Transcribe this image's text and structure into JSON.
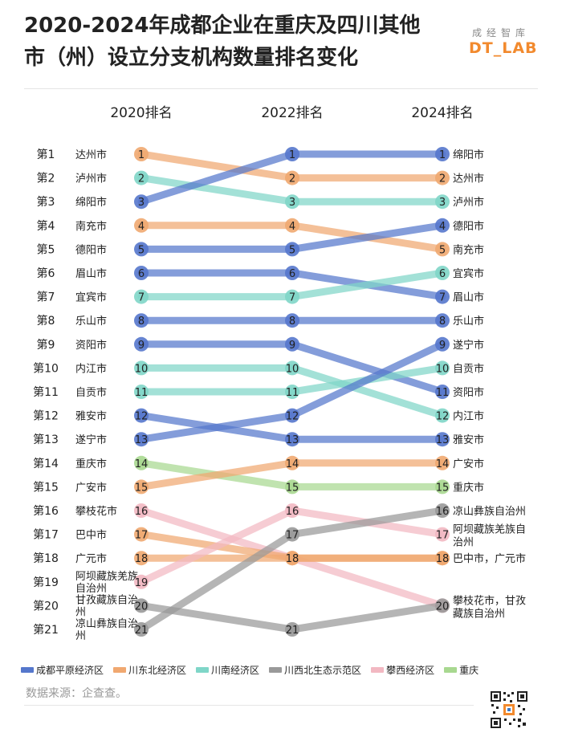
{
  "title_line1": "2020-2024年成都企业在重庆及四川其他",
  "title_line2": "市（州）设立分支机构数量排名变化",
  "brand_top": "成经智库",
  "brand_bottom": "DT_LAB",
  "source": "数据来源：企查查。",
  "colors": {
    "成都平原经济区": "#5577cc",
    "川东北经济区": "#f0a870",
    "川南经济区": "#7fd6c8",
    "川西北生态示范区": "#999999",
    "攀西经济区": "#f2b8c2",
    "重庆": "#a8d890"
  },
  "legend": [
    "成都平原经济区",
    "川东北经济区",
    "川南经济区",
    "川西北生态示范区",
    "攀西经济区",
    "重庆"
  ],
  "chart_data": {
    "type": "line",
    "title": "2020-2024年成都企业在重庆及四川其他市（州）设立分支机构数量排名变化",
    "x": [
      "2020排名",
      "2022排名",
      "2024排名"
    ],
    "rank_labels": [
      "第1",
      "第2",
      "第3",
      "第4",
      "第5",
      "第6",
      "第7",
      "第8",
      "第9",
      "第10",
      "第11",
      "第12",
      "第13",
      "第14",
      "第15",
      "第16",
      "第17",
      "第18",
      "第19",
      "第20",
      "第21"
    ],
    "labels_2020": [
      "达州市",
      "泸州市",
      "绵阳市",
      "南充市",
      "德阳市",
      "眉山市",
      "宜宾市",
      "乐山市",
      "资阳市",
      "内江市",
      "自贡市",
      "雅安市",
      "遂宁市",
      "重庆市",
      "广安市",
      "攀枝花市",
      "巴中市",
      "广元市",
      "阿坝藏族羌族自治州",
      "甘孜藏族自治州",
      "凉山彝族自治州"
    ],
    "labels_2024": [
      {
        "rank": 1,
        "text": "绵阳市"
      },
      {
        "rank": 2,
        "text": "达州市"
      },
      {
        "rank": 3,
        "text": "泸州市"
      },
      {
        "rank": 4,
        "text": "德阳市"
      },
      {
        "rank": 5,
        "text": "南充市"
      },
      {
        "rank": 6,
        "text": "宜宾市"
      },
      {
        "rank": 7,
        "text": "眉山市"
      },
      {
        "rank": 8,
        "text": "乐山市"
      },
      {
        "rank": 9,
        "text": "遂宁市"
      },
      {
        "rank": 10,
        "text": "自贡市"
      },
      {
        "rank": 11,
        "text": "资阳市"
      },
      {
        "rank": 12,
        "text": "内江市"
      },
      {
        "rank": 13,
        "text": "雅安市"
      },
      {
        "rank": 14,
        "text": "广安市"
      },
      {
        "rank": 15,
        "text": "重庆市"
      },
      {
        "rank": 16,
        "text": "凉山彝族自治州"
      },
      {
        "rank": 17,
        "text": "阿坝藏族羌族自治州"
      },
      {
        "rank": 18,
        "text": "巴中市，广元市"
      },
      {
        "rank": 20,
        "text": "攀枝花市，甘孜藏族自治州"
      }
    ],
    "series": [
      {
        "name": "达州市",
        "region": "川东北经济区",
        "values": [
          1,
          2,
          2
        ]
      },
      {
        "name": "泸州市",
        "region": "川南经济区",
        "values": [
          2,
          3,
          3
        ]
      },
      {
        "name": "绵阳市",
        "region": "成都平原经济区",
        "values": [
          3,
          1,
          1
        ]
      },
      {
        "name": "南充市",
        "region": "川东北经济区",
        "values": [
          4,
          4,
          5
        ]
      },
      {
        "name": "德阳市",
        "region": "成都平原经济区",
        "values": [
          5,
          5,
          4
        ]
      },
      {
        "name": "眉山市",
        "region": "成都平原经济区",
        "values": [
          6,
          6,
          7
        ]
      },
      {
        "name": "宜宾市",
        "region": "川南经济区",
        "values": [
          7,
          7,
          6
        ]
      },
      {
        "name": "乐山市",
        "region": "成都平原经济区",
        "values": [
          8,
          8,
          8
        ]
      },
      {
        "name": "资阳市",
        "region": "成都平原经济区",
        "values": [
          9,
          9,
          11
        ]
      },
      {
        "name": "内江市",
        "region": "川南经济区",
        "values": [
          10,
          10,
          12
        ]
      },
      {
        "name": "自贡市",
        "region": "川南经济区",
        "values": [
          11,
          11,
          10
        ]
      },
      {
        "name": "雅安市",
        "region": "成都平原经济区",
        "values": [
          12,
          13,
          13
        ]
      },
      {
        "name": "遂宁市",
        "region": "成都平原经济区",
        "values": [
          13,
          12,
          9
        ]
      },
      {
        "name": "重庆市",
        "region": "重庆",
        "values": [
          14,
          15,
          15
        ]
      },
      {
        "name": "广安市",
        "region": "川东北经济区",
        "values": [
          15,
          14,
          14
        ]
      },
      {
        "name": "攀枝花市",
        "region": "攀西经济区",
        "values": [
          16,
          18,
          20
        ]
      },
      {
        "name": "巴中市",
        "region": "川东北经济区",
        "values": [
          17,
          18,
          18
        ]
      },
      {
        "name": "广元市",
        "region": "川东北经济区",
        "values": [
          18,
          18,
          18
        ]
      },
      {
        "name": "阿坝藏族羌族自治州",
        "region": "攀西经济区",
        "values": [
          19,
          16,
          17
        ]
      },
      {
        "name": "甘孜藏族自治州",
        "region": "川西北生态示范区",
        "values": [
          20,
          21,
          20
        ]
      },
      {
        "name": "凉山彝族自治州",
        "region": "川西北生态示范区",
        "values": [
          21,
          17,
          16
        ]
      }
    ],
    "ylim": [
      1,
      21
    ]
  }
}
